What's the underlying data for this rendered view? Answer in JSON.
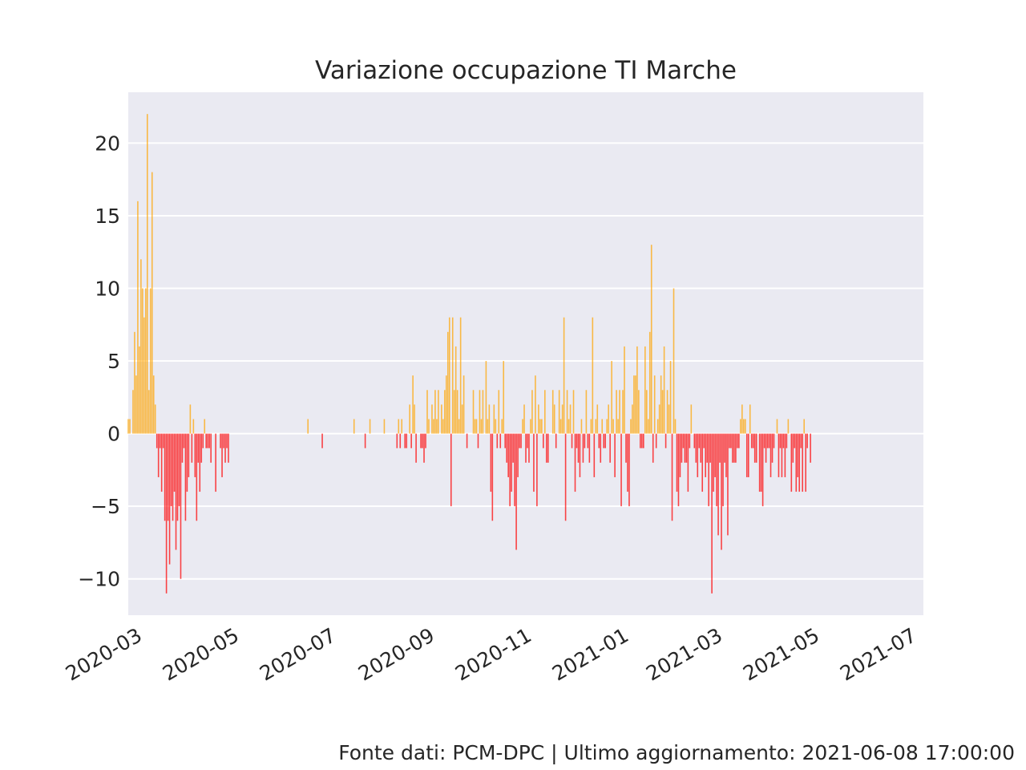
{
  "chart_data": {
    "type": "bar",
    "title": "Variazione occupazione TI Marche",
    "xlabel": "",
    "ylabel": "",
    "x_axis": "date",
    "x_ticks": [
      "2020-03",
      "2020-05",
      "2020-07",
      "2020-09",
      "2020-11",
      "2021-01",
      "2021-03",
      "2021-05",
      "2021-07"
    ],
    "y_ticks": [
      -10,
      -5,
      0,
      5,
      10,
      15,
      20
    ],
    "ylim": [
      -12.5,
      23.5
    ],
    "xlim": [
      "2020-02-24",
      "2021-07-08"
    ],
    "grid": true,
    "positive_color": "#ffa500",
    "negative_color": "#ff0000",
    "background_color": "#eaeaf2",
    "start_date": "2020-02-24",
    "values": [
      1,
      1,
      0,
      3,
      7,
      4,
      16,
      6,
      12,
      10,
      8,
      10,
      22,
      3,
      10,
      18,
      4,
      2,
      -1,
      -3,
      -1,
      -4,
      -1,
      -6,
      -11,
      -6,
      -9,
      -5,
      -6,
      -4,
      -8,
      -6,
      -5,
      -10,
      -2,
      -1,
      -6,
      -4,
      -3,
      2,
      -2,
      1,
      -3,
      -6,
      -2,
      -4,
      -2,
      -1,
      1,
      -1,
      -1,
      -1,
      -2,
      0,
      0,
      -4,
      0,
      0,
      -1,
      -3,
      -1,
      -2,
      -1,
      -2,
      0,
      0,
      0,
      0,
      0,
      0,
      0,
      0,
      0,
      0,
      0,
      0,
      0,
      0,
      0,
      0,
      0,
      0,
      0,
      0,
      0,
      0,
      0,
      0,
      0,
      0,
      0,
      0,
      0,
      0,
      0,
      0,
      0,
      0,
      0,
      0,
      0,
      0,
      0,
      0,
      0,
      0,
      0,
      0,
      0,
      0,
      0,
      0,
      0,
      1,
      0,
      0,
      0,
      0,
      0,
      0,
      0,
      0,
      -1,
      0,
      0,
      0,
      0,
      0,
      0,
      0,
      0,
      0,
      0,
      0,
      0,
      0,
      0,
      0,
      0,
      0,
      0,
      0,
      1,
      0,
      0,
      0,
      0,
      0,
      0,
      -1,
      0,
      0,
      1,
      0,
      0,
      0,
      0,
      0,
      0,
      0,
      0,
      1,
      0,
      0,
      0,
      0,
      0,
      0,
      0,
      -1,
      1,
      -1,
      1,
      0,
      -1,
      -1,
      0,
      2,
      -1,
      4,
      2,
      -2,
      0,
      0,
      -1,
      -1,
      -2,
      -1,
      3,
      1,
      0,
      2,
      1,
      3,
      1,
      3,
      0,
      2,
      1,
      3,
      4,
      7,
      8,
      -5,
      8,
      3,
      6,
      3,
      1,
      8,
      2,
      4,
      0,
      -1,
      0,
      0,
      0,
      3,
      1,
      1,
      -1,
      3,
      1,
      3,
      0,
      5,
      1,
      2,
      -4,
      -6,
      2,
      1,
      -1,
      3,
      -1,
      1,
      5,
      -1,
      -2,
      -3,
      -5,
      -4,
      -2,
      -5,
      -8,
      -3,
      -1,
      -1,
      1,
      2,
      -2,
      -1,
      -2,
      1,
      3,
      -4,
      4,
      -5,
      2,
      1,
      1,
      -1,
      3,
      -2,
      -2,
      0,
      0,
      3,
      2,
      -1,
      0,
      3,
      1,
      2,
      8,
      -6,
      3,
      1,
      2,
      -1,
      3,
      -4,
      -1,
      -2,
      -3,
      1,
      -2,
      -1,
      3,
      -1,
      -2,
      1,
      8,
      -3,
      1,
      2,
      -1,
      -2,
      1,
      -1,
      -1,
      1,
      2,
      -2,
      5,
      1,
      -3,
      3,
      1,
      3,
      -5,
      3,
      6,
      -2,
      -4,
      -5,
      1,
      2,
      4,
      4,
      6,
      3,
      -1,
      -1,
      -1,
      6,
      3,
      1,
      7,
      13,
      -2,
      4,
      -1,
      1,
      2,
      4,
      3,
      6,
      -1,
      3,
      2,
      5,
      -6,
      10,
      1,
      -4,
      -5,
      -3,
      -2,
      -1,
      -2,
      -2,
      -4,
      -1,
      2,
      0,
      -1,
      -2,
      -3,
      -1,
      -2,
      -4,
      -1,
      -3,
      -2,
      -5,
      -2,
      -11,
      -4,
      -3,
      -5,
      -7,
      -2,
      -8,
      -5,
      -2,
      -3,
      -7,
      -1,
      -1,
      -2,
      -2,
      -2,
      -1,
      -1,
      1,
      2,
      1,
      1,
      -3,
      -3,
      2,
      -1,
      -1,
      -2,
      -2,
      0,
      -4,
      -4,
      -5,
      -1,
      -2,
      -1,
      -1,
      -3,
      -2,
      -1,
      0,
      1,
      -3,
      -1,
      -3,
      -1,
      -3,
      -1,
      1,
      0,
      -4,
      -2,
      -1,
      -4,
      -3,
      -4,
      -1,
      -4,
      1,
      -4,
      -1,
      0,
      -2
    ]
  },
  "footer": {
    "source": "Fonte dati: PCM-DPC | Ultimo aggiornamento: 2021-06-08 17:00:00"
  }
}
